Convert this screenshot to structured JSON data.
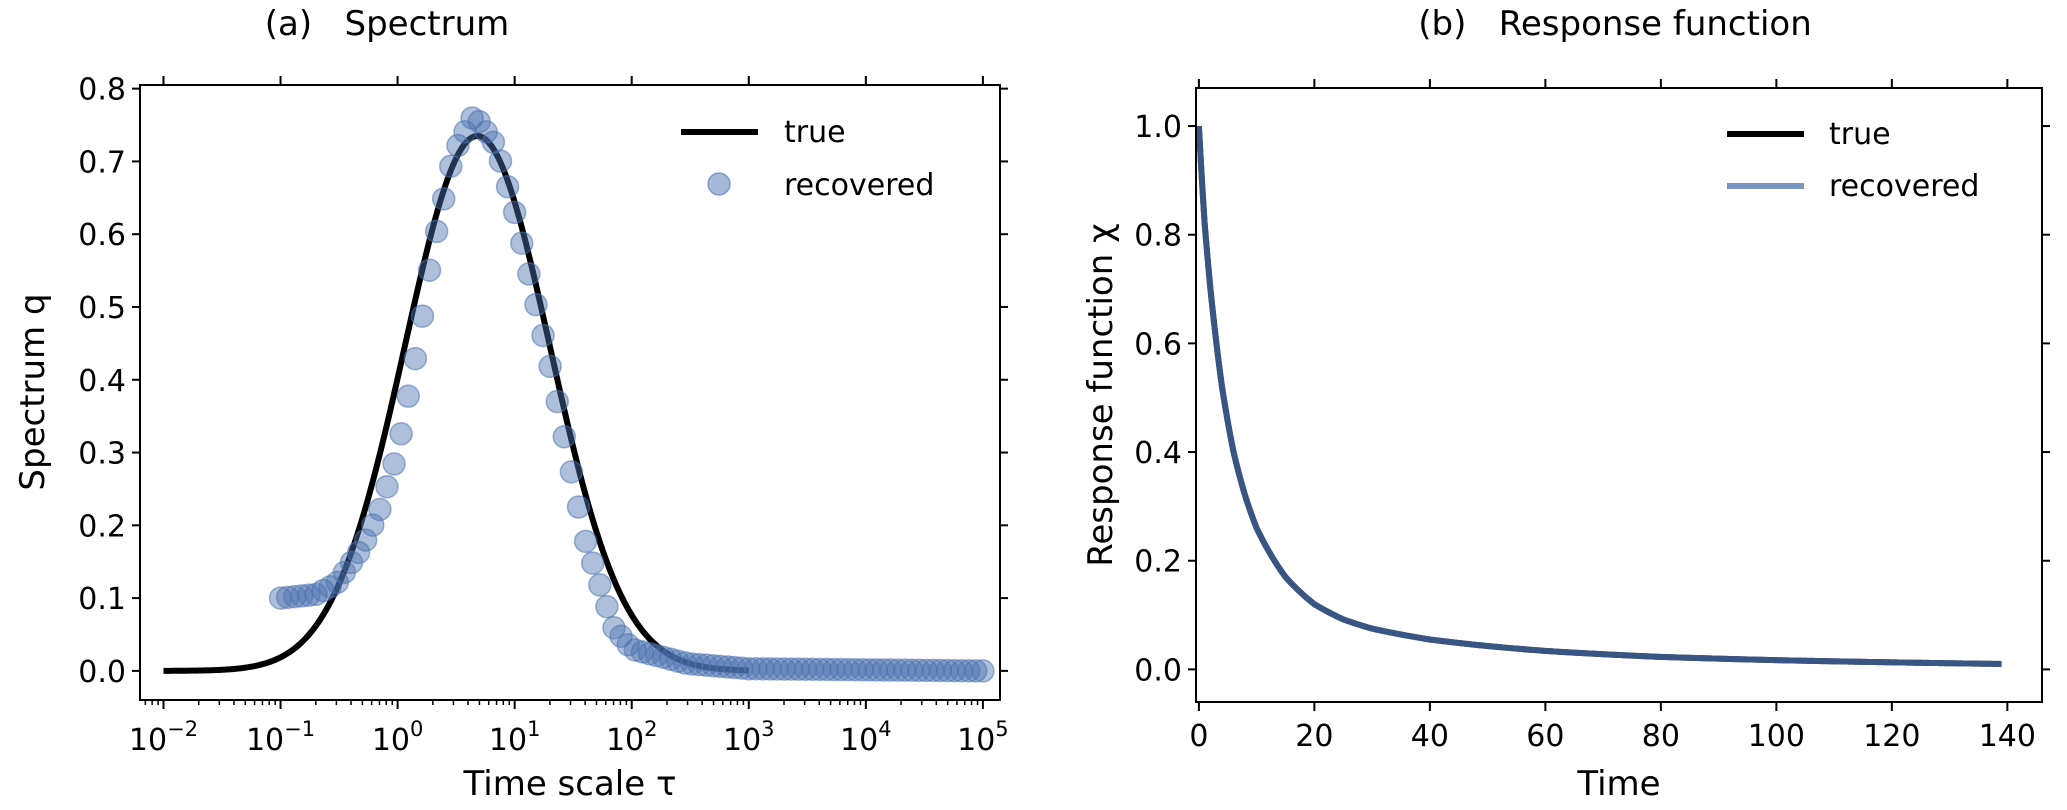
{
  "colors": {
    "true_line": "#000000",
    "recovered": "#4c72b0",
    "recovered_line": "#4c72b0",
    "axis": "#000000"
  },
  "chart_data": [
    {
      "type": "scatter",
      "title": "(a)   Spectrum",
      "xlabel": "Time scale τ",
      "ylabel": "Spectrum q",
      "xscale": "log",
      "xlim": [
        0.0063,
        140000
      ],
      "ylim": [
        -0.04,
        0.805
      ],
      "xticks": [
        0.01,
        0.1,
        1,
        10,
        100,
        1000,
        10000,
        100000
      ],
      "xtick_labels": [
        {
          "base": "10",
          "exp": "−2"
        },
        {
          "base": "10",
          "exp": "−1"
        },
        {
          "base": "10",
          "exp": "0"
        },
        {
          "base": "10",
          "exp": "1"
        },
        {
          "base": "10",
          "exp": "2"
        },
        {
          "base": "10",
          "exp": "3"
        },
        {
          "base": "10",
          "exp": "4"
        },
        {
          "base": "10",
          "exp": "5"
        }
      ],
      "yticks": [
        0.0,
        0.1,
        0.2,
        0.3,
        0.4,
        0.5,
        0.6,
        0.7,
        0.8
      ],
      "ytick_labels": [
        "0.0",
        "0.1",
        "0.2",
        "0.3",
        "0.4",
        "0.5",
        "0.6",
        "0.7",
        "0.8"
      ],
      "legend": {
        "position": "top-right",
        "entries": [
          "true",
          "recovered"
        ]
      },
      "series": [
        {
          "name": "true",
          "kind": "line",
          "model": "lognormal",
          "peak_tau": 4.8,
          "peak_value": 0.735,
          "log10_sigma": 0.62,
          "x_range": [
            0.01,
            1000
          ]
        },
        {
          "name": "recovered",
          "kind": "markers",
          "points_log10_tau_range": [
            -1,
            5
          ],
          "count": 100,
          "points": [
            [
              0.1,
              0.1
            ],
            [
              0.2,
              0.105
            ],
            [
              0.3,
              0.12
            ],
            [
              0.5,
              0.17
            ],
            [
              0.7,
              0.22
            ],
            [
              1.0,
              0.3
            ],
            [
              1.5,
              0.45
            ],
            [
              2.0,
              0.58
            ],
            [
              3.0,
              0.71
            ],
            [
              4.5,
              0.765
            ],
            [
              7.0,
              0.72
            ],
            [
              10.0,
              0.63
            ],
            [
              20.0,
              0.42
            ],
            [
              40.0,
              0.18
            ],
            [
              70.0,
              0.06
            ],
            [
              100.0,
              0.03
            ],
            [
              300.0,
              0.01
            ],
            [
              1000.0,
              0.003
            ],
            [
              100000.0,
              0.0
            ]
          ]
        }
      ]
    },
    {
      "type": "line",
      "title": "(b)   Response function",
      "xlabel": "Time",
      "ylabel": "Response function χ",
      "xlim": [
        -0.5,
        146
      ],
      "ylim": [
        -0.06,
        1.07
      ],
      "xticks": [
        0,
        20,
        40,
        60,
        80,
        100,
        120,
        140
      ],
      "xtick_labels": [
        "0",
        "20",
        "40",
        "60",
        "80",
        "100",
        "120",
        "140"
      ],
      "yticks": [
        0.0,
        0.2,
        0.4,
        0.6,
        0.8,
        1.0
      ],
      "ytick_labels": [
        "0.0",
        "0.2",
        "0.4",
        "0.6",
        "0.8",
        "1.0"
      ],
      "legend": {
        "position": "top-right",
        "entries": [
          "true",
          "recovered"
        ]
      },
      "series": [
        {
          "name": "true",
          "points": [
            [
              0,
              1.0
            ],
            [
              1,
              0.82
            ],
            [
              2,
              0.7
            ],
            [
              4,
              0.52
            ],
            [
              6,
              0.4
            ],
            [
              8,
              0.32
            ],
            [
              10,
              0.26
            ],
            [
              15,
              0.17
            ],
            [
              20,
              0.12
            ],
            [
              25,
              0.092
            ],
            [
              30,
              0.075
            ],
            [
              40,
              0.055
            ],
            [
              50,
              0.043
            ],
            [
              60,
              0.034
            ],
            [
              80,
              0.023
            ],
            [
              100,
              0.017
            ],
            [
              120,
              0.013
            ],
            [
              139,
              0.01
            ]
          ]
        },
        {
          "name": "recovered",
          "points": [
            [
              0,
              1.0
            ],
            [
              1,
              0.82
            ],
            [
              2,
              0.7
            ],
            [
              4,
              0.52
            ],
            [
              6,
              0.4
            ],
            [
              8,
              0.32
            ],
            [
              10,
              0.26
            ],
            [
              15,
              0.17
            ],
            [
              20,
              0.12
            ],
            [
              25,
              0.092
            ],
            [
              30,
              0.075
            ],
            [
              40,
              0.055
            ],
            [
              50,
              0.043
            ],
            [
              60,
              0.034
            ],
            [
              80,
              0.023
            ],
            [
              100,
              0.017
            ],
            [
              120,
              0.013
            ],
            [
              139,
              0.01
            ]
          ]
        }
      ]
    }
  ]
}
